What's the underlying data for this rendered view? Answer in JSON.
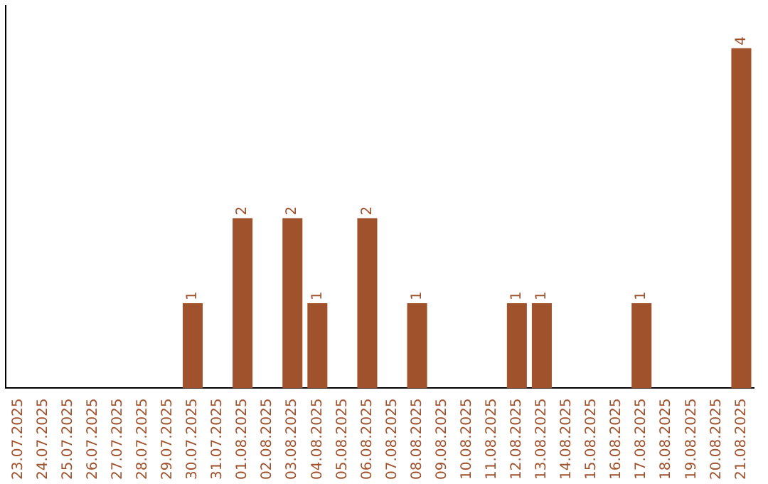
{
  "chart_data": {
    "type": "bar",
    "categories": [
      "23.07.2025",
      "24.07.2025",
      "25.07.2025",
      "26.07.2025",
      "27.07.2025",
      "28.07.2025",
      "29.07.2025",
      "30.07.2025",
      "31.07.2025",
      "01.08.2025",
      "02.08.2025",
      "03.08.2025",
      "04.08.2025",
      "05.08.2025",
      "06.08.2025",
      "07.08.2025",
      "08.08.2025",
      "09.08.2025",
      "10.08.2025",
      "11.08.2025",
      "12.08.2025",
      "13.08.2025",
      "14.08.2025",
      "15.08.2025",
      "16.08.2025",
      "17.08.2025",
      "18.08.2025",
      "19.08.2025",
      "20.08.2025",
      "21.08.2025"
    ],
    "values": [
      0,
      0,
      0,
      0,
      0,
      0,
      0,
      1,
      0,
      2,
      0,
      2,
      1,
      0,
      2,
      0,
      1,
      0,
      0,
      0,
      1,
      1,
      0,
      0,
      0,
      1,
      0,
      0,
      0,
      4
    ],
    "value_labels": [
      null,
      null,
      null,
      null,
      null,
      null,
      null,
      "1",
      null,
      "2",
      null,
      "2",
      "1",
      null,
      "2",
      null,
      "1",
      null,
      null,
      null,
      "1",
      "1",
      null,
      null,
      null,
      "1",
      null,
      null,
      null,
      "4"
    ],
    "color": "#a0522d",
    "grid": false,
    "legend": false,
    "tick_labels": "x"
  }
}
